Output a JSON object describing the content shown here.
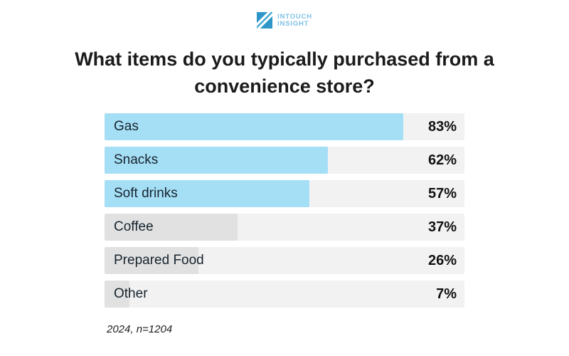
{
  "logo": {
    "line1": "INTOUCH",
    "line2": "INSIGHT"
  },
  "title": "What items do you typically purchased from a convenience store?",
  "title_lines": [
    "What items do you typically purchased from a",
    "convenience store?"
  ],
  "footnote": "2024, n=1204",
  "colors": {
    "accent_blue": "#a5dff6",
    "bar_gray": "#e1e1e1",
    "track_gray": "#f2f2f3",
    "logo_blue": "#2e96c8",
    "logo_text_blue": "#7ec0e4",
    "title_text": "#1b1b1b"
  },
  "chart_data": {
    "type": "bar",
    "orientation": "horizontal",
    "title": "What items do you typically purchased from a convenience store?",
    "categories": [
      "Gas",
      "Snacks",
      "Soft drinks",
      "Coffee",
      "Prepared Food",
      "Other"
    ],
    "values": [
      83,
      62,
      57,
      37,
      26,
      7
    ],
    "value_labels": [
      "83%",
      "62%",
      "57%",
      "37%",
      "26%",
      "7%"
    ],
    "xlim": [
      0,
      100
    ],
    "bar_colors": [
      "#a5dff6",
      "#a5dff6",
      "#a5dff6",
      "#e1e1e1",
      "#e1e1e1",
      "#e1e1e1"
    ],
    "track_color": "#f2f2f3",
    "grid": false,
    "legend": "none",
    "annotation": "2024, n=1204"
  }
}
